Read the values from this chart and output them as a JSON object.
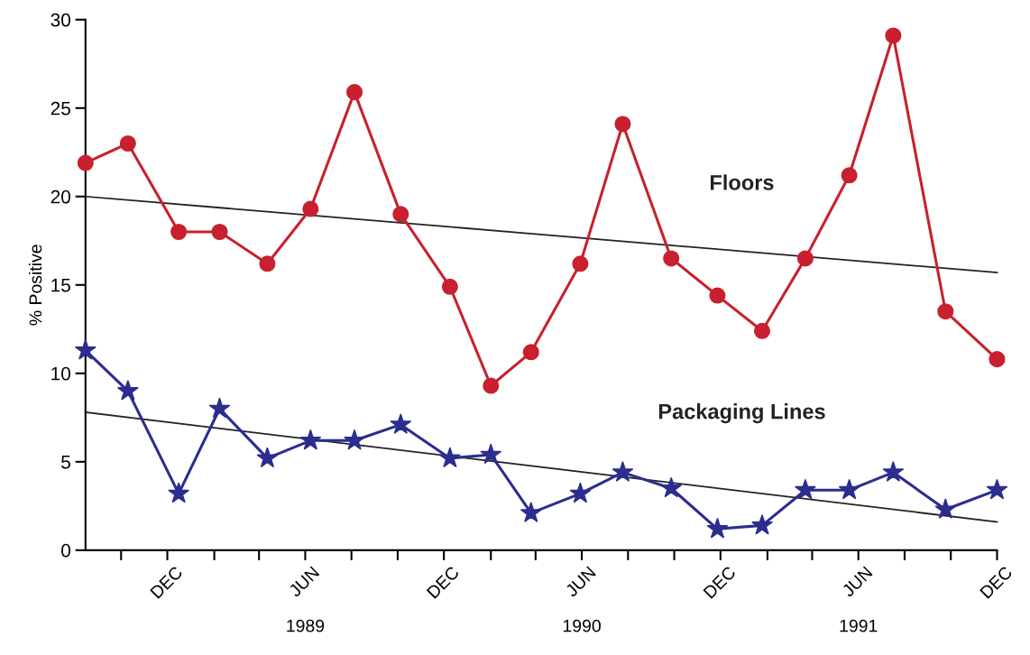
{
  "chart_data": {
    "type": "line",
    "ylabel": "% Positive",
    "xlim": [
      "1988-08-15",
      "1991-12-01"
    ],
    "ylim": [
      0,
      30
    ],
    "yticks": [
      0,
      5,
      10,
      15,
      20,
      25,
      30
    ],
    "xticks": [
      {
        "value": "1988-10-01",
        "label": null
      },
      {
        "value": "1988-12-01",
        "label": "DEC"
      },
      {
        "value": "1989-02-01",
        "label": null
      },
      {
        "value": "1989-04-01",
        "label": null
      },
      {
        "value": "1989-06-01",
        "label": "JUN"
      },
      {
        "value": "1989-08-01",
        "label": null
      },
      {
        "value": "1989-10-01",
        "label": null
      },
      {
        "value": "1989-12-01",
        "label": "DEC"
      },
      {
        "value": "1990-02-01",
        "label": null
      },
      {
        "value": "1990-04-01",
        "label": null
      },
      {
        "value": "1990-06-01",
        "label": "JUN"
      },
      {
        "value": "1990-08-01",
        "label": null
      },
      {
        "value": "1990-10-01",
        "label": null
      },
      {
        "value": "1990-12-01",
        "label": "DEC"
      },
      {
        "value": "1991-02-01",
        "label": null
      },
      {
        "value": "1991-04-01",
        "label": null
      },
      {
        "value": "1991-06-01",
        "label": "JUN"
      },
      {
        "value": "1991-08-01",
        "label": null
      },
      {
        "value": "1991-10-01",
        "label": null
      },
      {
        "value": "1991-12-01",
        "label": "DEC"
      }
    ],
    "x2lim": [
      "1988-08-15",
      "1991-12-01"
    ],
    "x2ticks": [
      {
        "value": "1989-06-01",
        "label": "1989"
      },
      {
        "value": "1990-06-01",
        "label": "1990"
      },
      {
        "value": "1991-06-01",
        "label": "1991"
      }
    ],
    "x": [
      "1988-08-15",
      "1988-10-10",
      "1988-12-16",
      "1989-02-08",
      "1989-04-12",
      "1989-06-08",
      "1989-08-05",
      "1989-10-05",
      "1989-12-09",
      "1990-02-01",
      "1990-03-26",
      "1990-05-30",
      "1990-07-25",
      "1990-09-27",
      "1990-11-27",
      "1991-01-25",
      "1991-03-23",
      "1991-05-20",
      "1991-07-17",
      "1991-09-24",
      "1991-12-01"
    ],
    "grid": false,
    "legend": false,
    "series": [
      {
        "name": "Floors",
        "color": "#c8202f",
        "marker": "circle",
        "values": [
          21.9,
          23.0,
          18.0,
          18.0,
          16.2,
          19.3,
          25.9,
          19.0,
          14.9,
          9.3,
          11.2,
          16.2,
          24.1,
          16.5,
          14.4,
          12.4,
          16.5,
          21.2,
          29.1,
          13.5,
          10.8
        ]
      },
      {
        "name": "Packaging Lines",
        "color": "#2b2d8f",
        "marker": "star",
        "values": [
          11.3,
          9.0,
          3.2,
          8.0,
          5.2,
          6.2,
          6.2,
          7.1,
          5.2,
          5.4,
          2.1,
          3.2,
          4.4,
          3.5,
          1.2,
          1.4,
          3.4,
          3.4,
          4.4,
          2.3,
          3.4
        ]
      },
      {
        "color": "#222222",
        "marker": "none",
        "x": [
          "1988-08-15",
          "1991-12-01"
        ],
        "values": [
          20.0,
          15.7
        ]
      },
      {
        "color": "#222222",
        "marker": "none",
        "x": [
          "1988-08-15",
          "1991-12-01"
        ],
        "values": [
          7.8,
          1.6
        ]
      }
    ]
  }
}
